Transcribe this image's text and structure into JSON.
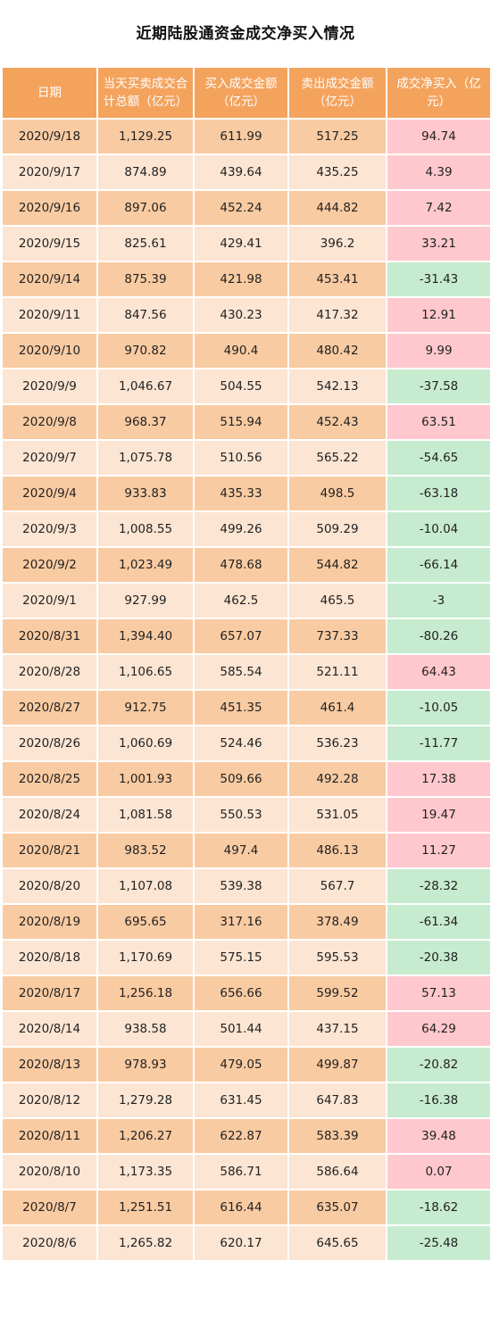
{
  "title": "近期陆股通资金成交净买入情况",
  "colors": {
    "header": "#f4a35d",
    "row_odd": "#f9cba2",
    "row_even": "#fce5d3",
    "positive": "#ffc8ce",
    "negative": "#c7ebce"
  },
  "chart_data": {
    "type": "table",
    "columns": [
      "日期",
      "当天买卖成交合计总额（亿元）",
      "买入成交金额（亿元）",
      "卖出成交金额（亿元）",
      "成交净买入（亿元）"
    ],
    "rows": [
      [
        "2020/9/18",
        "1,129.25",
        "611.99",
        "517.25",
        "94.74"
      ],
      [
        "2020/9/17",
        "874.89",
        "439.64",
        "435.25",
        "4.39"
      ],
      [
        "2020/9/16",
        "897.06",
        "452.24",
        "444.82",
        "7.42"
      ],
      [
        "2020/9/15",
        "825.61",
        "429.41",
        "396.2",
        "33.21"
      ],
      [
        "2020/9/14",
        "875.39",
        "421.98",
        "453.41",
        "-31.43"
      ],
      [
        "2020/9/11",
        "847.56",
        "430.23",
        "417.32",
        "12.91"
      ],
      [
        "2020/9/10",
        "970.82",
        "490.4",
        "480.42",
        "9.99"
      ],
      [
        "2020/9/9",
        "1,046.67",
        "504.55",
        "542.13",
        "-37.58"
      ],
      [
        "2020/9/8",
        "968.37",
        "515.94",
        "452.43",
        "63.51"
      ],
      [
        "2020/9/7",
        "1,075.78",
        "510.56",
        "565.22",
        "-54.65"
      ],
      [
        "2020/9/4",
        "933.83",
        "435.33",
        "498.5",
        "-63.18"
      ],
      [
        "2020/9/3",
        "1,008.55",
        "499.26",
        "509.29",
        "-10.04"
      ],
      [
        "2020/9/2",
        "1,023.49",
        "478.68",
        "544.82",
        "-66.14"
      ],
      [
        "2020/9/1",
        "927.99",
        "462.5",
        "465.5",
        "-3"
      ],
      [
        "2020/8/31",
        "1,394.40",
        "657.07",
        "737.33",
        "-80.26"
      ],
      [
        "2020/8/28",
        "1,106.65",
        "585.54",
        "521.11",
        "64.43"
      ],
      [
        "2020/8/27",
        "912.75",
        "451.35",
        "461.4",
        "-10.05"
      ],
      [
        "2020/8/26",
        "1,060.69",
        "524.46",
        "536.23",
        "-11.77"
      ],
      [
        "2020/8/25",
        "1,001.93",
        "509.66",
        "492.28",
        "17.38"
      ],
      [
        "2020/8/24",
        "1,081.58",
        "550.53",
        "531.05",
        "19.47"
      ],
      [
        "2020/8/21",
        "983.52",
        "497.4",
        "486.13",
        "11.27"
      ],
      [
        "2020/8/20",
        "1,107.08",
        "539.38",
        "567.7",
        "-28.32"
      ],
      [
        "2020/8/19",
        "695.65",
        "317.16",
        "378.49",
        "-61.34"
      ],
      [
        "2020/8/18",
        "1,170.69",
        "575.15",
        "595.53",
        "-20.38"
      ],
      [
        "2020/8/17",
        "1,256.18",
        "656.66",
        "599.52",
        "57.13"
      ],
      [
        "2020/8/14",
        "938.58",
        "501.44",
        "437.15",
        "64.29"
      ],
      [
        "2020/8/13",
        "978.93",
        "479.05",
        "499.87",
        "-20.82"
      ],
      [
        "2020/8/12",
        "1,279.28",
        "631.45",
        "647.83",
        "-16.38"
      ],
      [
        "2020/8/11",
        "1,206.27",
        "622.87",
        "583.39",
        "39.48"
      ],
      [
        "2020/8/10",
        "1,173.35",
        "586.71",
        "586.64",
        "0.07"
      ],
      [
        "2020/8/7",
        "1,251.51",
        "616.44",
        "635.07",
        "-18.62"
      ],
      [
        "2020/8/6",
        "1,265.82",
        "620.17",
        "645.65",
        "-25.48"
      ]
    ]
  }
}
